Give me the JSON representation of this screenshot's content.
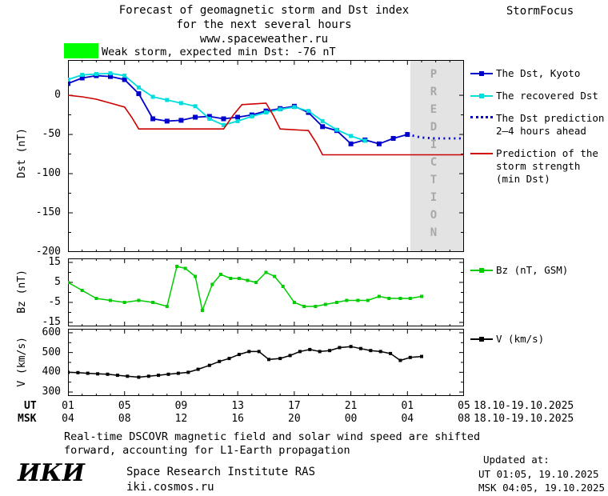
{
  "header": {
    "title_line1": "Forecast of geomagnetic storm and Dst index",
    "title_line2": "for the next several hours",
    "title_line3": "www.spaceweather.ru",
    "brand": "StormFocus",
    "status_text": "Weak storm, expected min Dst: -76 nT",
    "status_color": "#00ff00"
  },
  "legend_dst": {
    "kyoto": "The Dst, Kyoto",
    "recovered": "The recovered Dst",
    "prediction": "The Dst prediction\n2–4 hours ahead",
    "strength": "Prediction of the\nstorm strength\n(min Dst)"
  },
  "legend_bz": "Bz (nT, GSM)",
  "legend_v": "V (km/s)",
  "xaxis": {
    "ut_label": "UT",
    "msk_label": "MSK",
    "ut_date": "18.10-19.10.2025",
    "msk_date": "18.10-19.10.2025"
  },
  "footer": {
    "note": "Real-time DSCOVR magnetic field and solar wind speed are shifted\nforward, accounting for L1-Earth propagation",
    "logo": "ИКИ",
    "institute": "Space Research Institute RAS",
    "site": "iki.cosmos.ru",
    "updated_label": "Updated at:",
    "updated_ut": "UT  01:05, 19.10.2025",
    "updated_msk": "MSK 04:05, 19.10.2025"
  },
  "chart_data": [
    {
      "type": "line",
      "panel": "dst",
      "ylabel": "Dst (nT)",
      "xlim": [
        1,
        29
      ],
      "ylim": [
        -200,
        45
      ],
      "yticks": [
        0,
        -50,
        -100,
        -150,
        -200
      ],
      "yticks_minor": [
        -25,
        -75,
        -125,
        -175
      ],
      "xticks": [
        1,
        5,
        9,
        13,
        17,
        21,
        25,
        29
      ],
      "xtick_labels_ut": [
        "01",
        "05",
        "09",
        "13",
        "17",
        "21",
        "01",
        "05"
      ],
      "xtick_labels_msk": [
        "04",
        "08",
        "12",
        "16",
        "20",
        "00",
        "04",
        "08"
      ],
      "prediction_band": {
        "start": 25.2,
        "end": 29,
        "label": "PREDICTION",
        "color": "#e3e3e3"
      },
      "series": [
        {
          "key": "dst-kyoto",
          "name": "The Dst, Kyoto",
          "color": "#0000cc",
          "width": 1.8,
          "marker": true,
          "marker_size": 6,
          "points": [
            [
              1,
              15
            ],
            [
              2,
              22
            ],
            [
              3,
              25
            ],
            [
              4,
              24
            ],
            [
              5,
              20
            ],
            [
              6,
              2
            ],
            [
              7,
              -30
            ],
            [
              8,
              -33
            ],
            [
              9,
              -32
            ],
            [
              10,
              -28
            ],
            [
              11,
              -27
            ],
            [
              12,
              -30
            ],
            [
              13,
              -28
            ],
            [
              14,
              -25
            ],
            [
              15,
              -20
            ],
            [
              16,
              -17
            ],
            [
              17,
              -14
            ],
            [
              18,
              -22
            ],
            [
              19,
              -40
            ],
            [
              20,
              -45
            ],
            [
              21,
              -62
            ],
            [
              22,
              -57
            ],
            [
              23,
              -62
            ],
            [
              24,
              -55
            ],
            [
              25,
              -50
            ]
          ]
        },
        {
          "key": "recovered-dst",
          "name": "The recovered Dst",
          "color": "#00dddd",
          "width": 1.8,
          "marker": true,
          "marker_size": 5,
          "points": [
            [
              1,
              20
            ],
            [
              2,
              26
            ],
            [
              3,
              27
            ],
            [
              4,
              28
            ],
            [
              5,
              25
            ],
            [
              6,
              10
            ],
            [
              7,
              -2
            ],
            [
              8,
              -6
            ],
            [
              9,
              -10
            ],
            [
              10,
              -14
            ],
            [
              11,
              -30
            ],
            [
              12,
              -38
            ],
            [
              13,
              -33
            ],
            [
              14,
              -27
            ],
            [
              15,
              -22
            ],
            [
              16,
              -18
            ],
            [
              17,
              -15
            ],
            [
              18,
              -20
            ],
            [
              19,
              -33
            ],
            [
              20,
              -44
            ],
            [
              21,
              -52
            ],
            [
              22,
              -58
            ]
          ]
        },
        {
          "key": "dst-prediction",
          "name": "The Dst prediction 2–4 hours ahead",
          "color": "#0000cc",
          "dash": true,
          "marker": false,
          "points": [
            [
              25,
              -50
            ],
            [
              26,
              -54
            ],
            [
              27,
              -55
            ],
            [
              28,
              -55
            ],
            [
              29,
              -55
            ]
          ]
        },
        {
          "key": "storm-strength",
          "name": "Prediction of the storm strength (min Dst)",
          "color": "#cc0000",
          "width": 1.6,
          "marker": false,
          "points": [
            [
              1,
              0
            ],
            [
              2,
              -2
            ],
            [
              3,
              -5
            ],
            [
              4,
              -10
            ],
            [
              5,
              -15
            ],
            [
              5.5,
              -28
            ],
            [
              6,
              -43
            ],
            [
              12,
              -43
            ],
            [
              12.7,
              -25
            ],
            [
              13.3,
              -12
            ],
            [
              15,
              -10
            ],
            [
              15.5,
              -25
            ],
            [
              16,
              -43
            ],
            [
              18,
              -45
            ],
            [
              18.6,
              -62
            ],
            [
              19,
              -76
            ],
            [
              29,
              -76
            ]
          ]
        }
      ]
    },
    {
      "type": "line",
      "panel": "bz",
      "ylabel": "Bz (nT)",
      "xlim": [
        1,
        29
      ],
      "ylim": [
        -17,
        17
      ],
      "yticks": [
        15,
        5,
        -5,
        -15
      ],
      "yticks_minor": [
        10,
        0,
        -10
      ],
      "xticks": [
        1,
        5,
        9,
        13,
        17,
        21,
        25,
        29
      ],
      "series": [
        {
          "key": "bz",
          "name": "Bz (nT, GSM)",
          "color": "#00cc00",
          "width": 1.5,
          "marker": true,
          "marker_size": 4,
          "points": [
            [
              1,
              5
            ],
            [
              2,
              1
            ],
            [
              3,
              -3
            ],
            [
              4,
              -4
            ],
            [
              5,
              -5
            ],
            [
              6,
              -4
            ],
            [
              7,
              -5
            ],
            [
              8,
              -7
            ],
            [
              8.7,
              13
            ],
            [
              9.3,
              12
            ],
            [
              10,
              8
            ],
            [
              10.5,
              -9
            ],
            [
              11.2,
              4
            ],
            [
              11.8,
              9
            ],
            [
              12.5,
              7
            ],
            [
              13.1,
              7
            ],
            [
              13.7,
              6
            ],
            [
              14.3,
              5
            ],
            [
              15,
              10
            ],
            [
              15.6,
              8
            ],
            [
              16.2,
              3
            ],
            [
              17,
              -5
            ],
            [
              17.7,
              -7
            ],
            [
              18.5,
              -7
            ],
            [
              19.2,
              -6
            ],
            [
              20,
              -5
            ],
            [
              20.7,
              -4
            ],
            [
              21.5,
              -4
            ],
            [
              22.2,
              -4
            ],
            [
              23,
              -2
            ],
            [
              23.7,
              -3
            ],
            [
              24.5,
              -3
            ],
            [
              25.2,
              -3
            ],
            [
              26,
              -2
            ]
          ]
        }
      ]
    },
    {
      "type": "line",
      "panel": "v",
      "ylabel": "V (km/s)",
      "xlim": [
        1,
        29
      ],
      "ylim": [
        280,
        620
      ],
      "yticks": [
        600,
        500,
        400,
        300
      ],
      "yticks_minor": [
        550,
        450,
        350
      ],
      "xticks": [
        1,
        5,
        9,
        13,
        17,
        21,
        25,
        29
      ],
      "series": [
        {
          "key": "v",
          "name": "V (km/s)",
          "color": "#000000",
          "width": 1.5,
          "marker": true,
          "marker_size": 4,
          "points": [
            [
              1,
              400
            ],
            [
              1.7,
              398
            ],
            [
              2.4,
              395
            ],
            [
              3.1,
              392
            ],
            [
              3.8,
              390
            ],
            [
              4.5,
              385
            ],
            [
              5.2,
              380
            ],
            [
              6,
              375
            ],
            [
              6.7,
              380
            ],
            [
              7.4,
              385
            ],
            [
              8.1,
              390
            ],
            [
              8.8,
              395
            ],
            [
              9.5,
              400
            ],
            [
              10.2,
              415
            ],
            [
              11,
              435
            ],
            [
              11.7,
              455
            ],
            [
              12.4,
              470
            ],
            [
              13.1,
              490
            ],
            [
              13.8,
              505
            ],
            [
              14.5,
              505
            ],
            [
              15.2,
              465
            ],
            [
              16,
              470
            ],
            [
              16.7,
              485
            ],
            [
              17.4,
              505
            ],
            [
              18.1,
              515
            ],
            [
              18.8,
              505
            ],
            [
              19.5,
              510
            ],
            [
              20.2,
              525
            ],
            [
              21,
              530
            ],
            [
              21.7,
              520
            ],
            [
              22.4,
              510
            ],
            [
              23.1,
              505
            ],
            [
              23.8,
              495
            ],
            [
              24.5,
              460
            ],
            [
              25.2,
              475
            ],
            [
              26,
              480
            ]
          ]
        }
      ]
    }
  ]
}
